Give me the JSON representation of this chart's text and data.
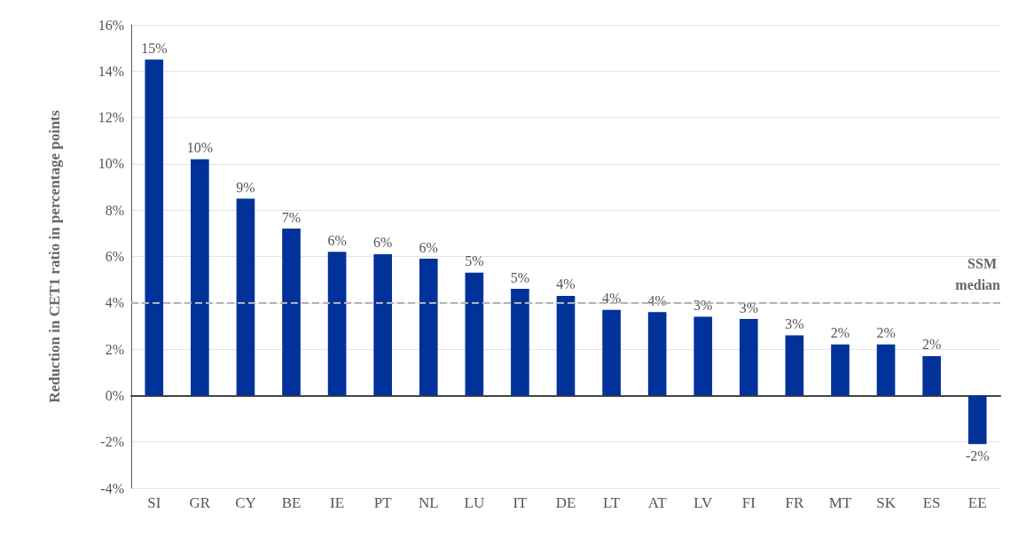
{
  "chart_data": {
    "type": "bar",
    "ylabel": "Reduction in CET1 ratio in percentage points",
    "categories": [
      "SI",
      "GR",
      "CY",
      "BE",
      "IE",
      "PT",
      "NL",
      "LU",
      "IT",
      "DE",
      "LT",
      "AT",
      "LV",
      "FI",
      "FR",
      "MT",
      "SK",
      "ES",
      "EE"
    ],
    "values": [
      14.5,
      10.2,
      8.5,
      7.2,
      6.2,
      6.1,
      5.9,
      5.3,
      4.6,
      4.3,
      3.7,
      3.6,
      3.4,
      3.3,
      2.6,
      2.2,
      2.2,
      1.7,
      -2.1
    ],
    "value_labels": [
      "15%",
      "10%",
      "9%",
      "7%",
      "6%",
      "6%",
      "6%",
      "5%",
      "5%",
      "4%",
      "4%",
      "4%",
      "3%",
      "3%",
      "3%",
      "2%",
      "2%",
      "2%",
      "-2%"
    ],
    "color": "#003299",
    "ylim": [
      -4,
      16
    ],
    "yticks": [
      {
        "value": -4,
        "label": "-4%"
      },
      {
        "value": -2,
        "label": "-2%"
      },
      {
        "value": 0,
        "label": "0%"
      },
      {
        "value": 2,
        "label": "2%"
      },
      {
        "value": 4,
        "label": "4%"
      },
      {
        "value": 6,
        "label": "6%"
      },
      {
        "value": 8,
        "label": "8%"
      },
      {
        "value": 10,
        "label": "10%"
      },
      {
        "value": 12,
        "label": "12%"
      },
      {
        "value": 14,
        "label": "14%"
      },
      {
        "value": 16,
        "label": "16%"
      }
    ],
    "grid": "y",
    "ref_lines": [
      {
        "axis": "y",
        "value": 4,
        "label": "SSM median",
        "color": "#b3b3b3",
        "line_style": "dashed"
      }
    ]
  }
}
